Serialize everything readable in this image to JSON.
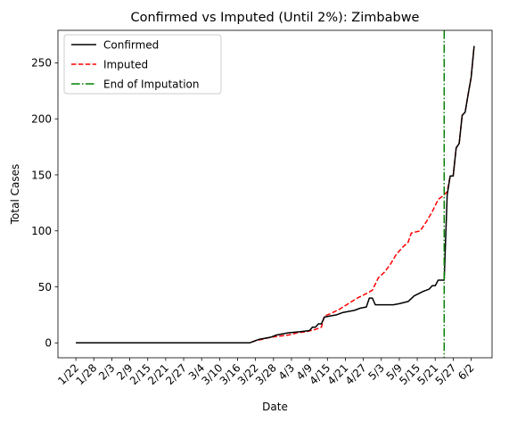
{
  "chart_data": {
    "type": "line",
    "title": "Confirmed vs Imputed (Until 2%): Zimbabwe",
    "xlabel": "Date",
    "ylabel": "Total Cases",
    "ylim": [
      -13.3,
      279.0
    ],
    "y_ticks": [
      0,
      50,
      100,
      150,
      200,
      250
    ],
    "x_ticks": [
      "1/22",
      "1/28",
      "2/3",
      "2/9",
      "2/15",
      "2/21",
      "2/27",
      "3/4",
      "3/10",
      "3/16",
      "3/22",
      "3/28",
      "4/3",
      "4/9",
      "4/15",
      "4/21",
      "4/27",
      "5/3",
      "5/9",
      "5/15",
      "5/21",
      "5/27",
      "6/2"
    ],
    "grid": false,
    "legend_position": "upper left",
    "vline": {
      "label": "End of Imputation",
      "x": "5/24",
      "color": "#008000"
    },
    "series": [
      {
        "name": "Confirmed",
        "color": "#000000",
        "style": "solid",
        "points": [
          [
            "1/22",
            0
          ],
          [
            "3/20",
            0
          ],
          [
            "3/21",
            1
          ],
          [
            "3/22",
            2
          ],
          [
            "3/23",
            3
          ],
          [
            "3/27",
            5
          ],
          [
            "3/29",
            7
          ],
          [
            "3/31",
            8
          ],
          [
            "4/2",
            9
          ],
          [
            "4/6",
            10
          ],
          [
            "4/9",
            11
          ],
          [
            "4/10",
            14
          ],
          [
            "4/11",
            14
          ],
          [
            "4/12",
            17
          ],
          [
            "4/13",
            17
          ],
          [
            "4/14",
            23
          ],
          [
            "4/16",
            24
          ],
          [
            "4/18",
            25
          ],
          [
            "4/20",
            27
          ],
          [
            "4/22",
            28
          ],
          [
            "4/24",
            29
          ],
          [
            "4/26",
            31
          ],
          [
            "4/28",
            32
          ],
          [
            "4/29",
            40
          ],
          [
            "4/30",
            40
          ],
          [
            "5/1",
            34
          ],
          [
            "5/7",
            34
          ],
          [
            "5/9",
            35
          ],
          [
            "5/12",
            37
          ],
          [
            "5/14",
            42
          ],
          [
            "5/17",
            46
          ],
          [
            "5/19",
            48
          ],
          [
            "5/20",
            51
          ],
          [
            "5/21",
            51
          ],
          [
            "5/22",
            56
          ],
          [
            "5/23",
            56
          ],
          [
            "5/24",
            56
          ],
          [
            "5/25",
            132
          ],
          [
            "5/26",
            149
          ],
          [
            "5/27",
            149
          ],
          [
            "5/28",
            174
          ],
          [
            "5/29",
            178
          ],
          [
            "5/30",
            203
          ],
          [
            "5/31",
            206
          ],
          [
            "6/1",
            222
          ],
          [
            "6/2",
            237
          ],
          [
            "6/3",
            265
          ]
        ]
      },
      {
        "name": "Imputed",
        "color": "#ff0000",
        "style": "dashed",
        "points": [
          [
            "1/22",
            0
          ],
          [
            "3/20",
            0
          ],
          [
            "3/22",
            2
          ],
          [
            "3/24",
            3
          ],
          [
            "3/27",
            5
          ],
          [
            "3/30",
            6
          ],
          [
            "4/2",
            7
          ],
          [
            "4/5",
            9
          ],
          [
            "4/8",
            10
          ],
          [
            "4/11",
            12
          ],
          [
            "4/13",
            14
          ],
          [
            "4/14",
            24
          ],
          [
            "4/16",
            26
          ],
          [
            "4/19",
            30
          ],
          [
            "4/22",
            35
          ],
          [
            "4/25",
            40
          ],
          [
            "4/28",
            44
          ],
          [
            "4/30",
            47
          ],
          [
            "5/2",
            58
          ],
          [
            "5/4",
            63
          ],
          [
            "5/6",
            70
          ],
          [
            "5/8",
            79
          ],
          [
            "5/10",
            85
          ],
          [
            "5/12",
            90
          ],
          [
            "5/13",
            98
          ],
          [
            "5/16",
            100
          ],
          [
            "5/18",
            108
          ],
          [
            "5/20",
            117
          ],
          [
            "5/22",
            128
          ],
          [
            "5/24",
            132
          ],
          [
            "5/25",
            135
          ],
          [
            "5/26",
            149
          ],
          [
            "5/27",
            149
          ],
          [
            "5/28",
            174
          ],
          [
            "5/29",
            178
          ],
          [
            "5/30",
            203
          ],
          [
            "5/31",
            206
          ],
          [
            "6/1",
            222
          ],
          [
            "6/2",
            237
          ],
          [
            "6/3",
            265
          ]
        ]
      }
    ]
  }
}
